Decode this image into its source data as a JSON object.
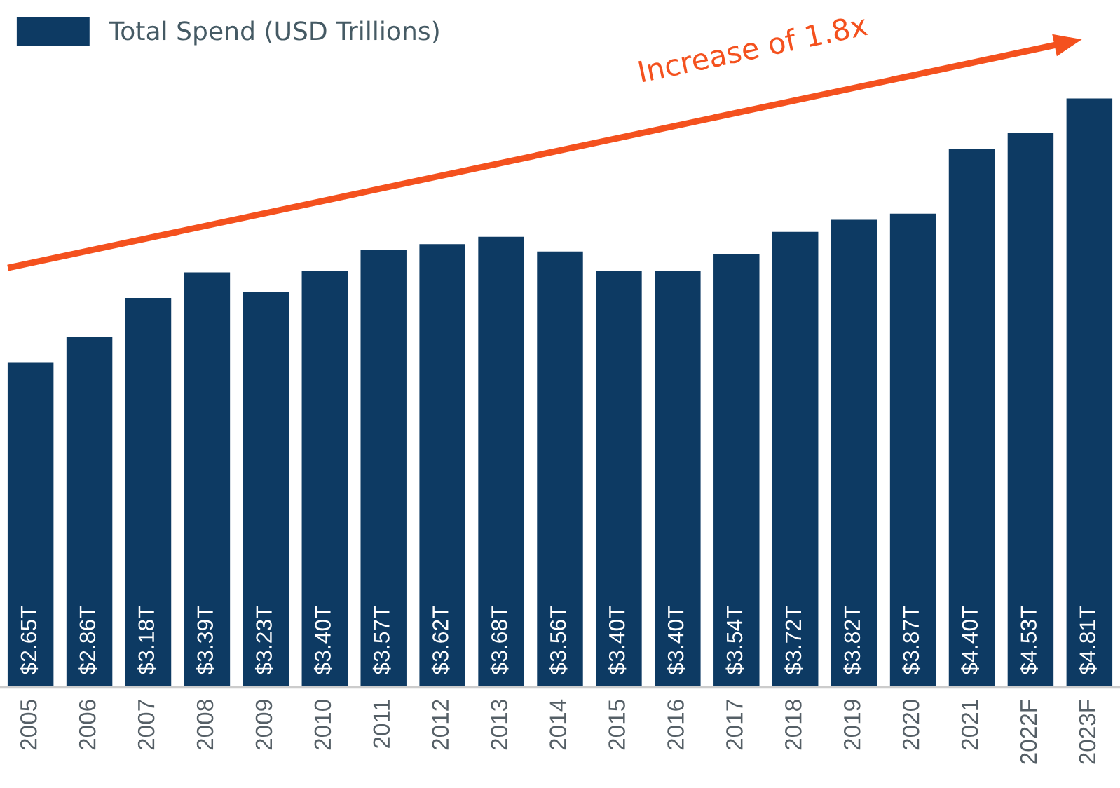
{
  "chart_data": {
    "type": "bar",
    "categories": [
      "2005",
      "2006",
      "2007",
      "2008",
      "2009",
      "2010",
      "2011",
      "2012",
      "2013",
      "2014",
      "2015",
      "2016",
      "2017",
      "2018",
      "2019",
      "2020",
      "2021",
      "2022F",
      "2023F"
    ],
    "series": [
      {
        "name": "Total Spend (USD Trillions)",
        "color": "#0d3a63",
        "values": [
          2.65,
          2.86,
          3.18,
          3.39,
          3.23,
          3.4,
          3.57,
          3.62,
          3.68,
          3.56,
          3.4,
          3.4,
          3.54,
          3.72,
          3.82,
          3.87,
          4.4,
          4.53,
          4.81
        ],
        "value_labels": [
          "$2.65T",
          "$2.86T",
          "$3.18T",
          "$3.39T",
          "$3.23T",
          "$3.40T",
          "$3.57T",
          "$3.62T",
          "$3.68T",
          "$3.56T",
          "$3.40T",
          "$3.40T",
          "$3.54T",
          "$3.72T",
          "$3.82T",
          "$3.87T",
          "$4.40T",
          "$4.53T",
          "$4.81T"
        ]
      }
    ],
    "annotations": [
      "Increase of 1.8x"
    ],
    "legend": "top left"
  }
}
